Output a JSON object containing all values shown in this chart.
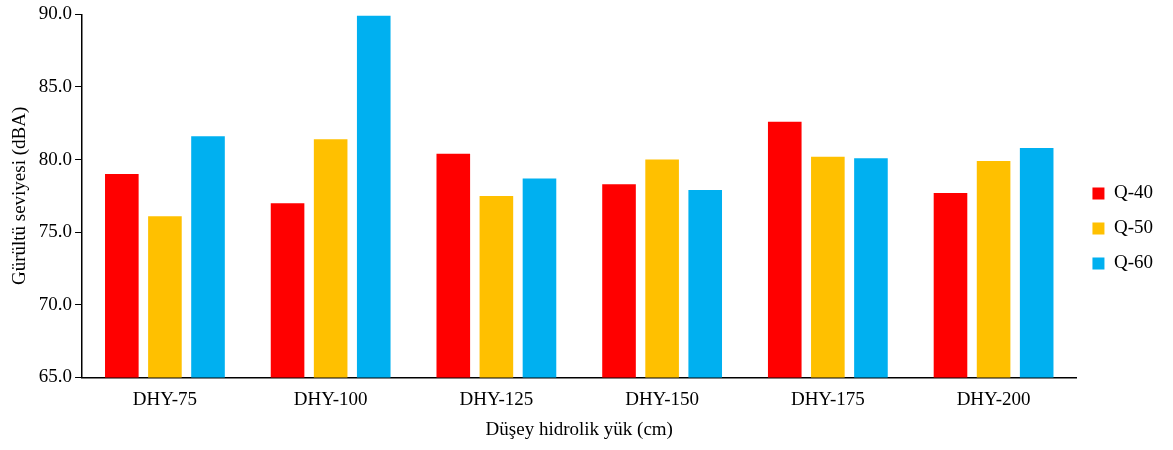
{
  "chart_data": {
    "type": "bar",
    "xlabel": "Düşey hidrolik yük (cm)",
    "ylabel": "Gürültü seviyesi (dBA)",
    "categories": [
      "DHY-75",
      "DHY-100",
      "DHY-125",
      "DHY-150",
      "DHY-175",
      "DHY-200"
    ],
    "series": [
      {
        "name": "Q-40",
        "color": "#ff0000",
        "values": [
          79.0,
          77.0,
          80.4,
          78.3,
          82.6,
          77.7
        ]
      },
      {
        "name": "Q-50",
        "color": "#ffc000",
        "values": [
          76.1,
          81.4,
          77.5,
          80.0,
          80.2,
          79.9
        ]
      },
      {
        "name": "Q-60",
        "color": "#00b0f0",
        "values": [
          81.6,
          89.9,
          78.7,
          77.9,
          80.1,
          80.8
        ]
      }
    ],
    "ylim": [
      65,
      90
    ],
    "yticks": [
      {
        "value": 65,
        "label": "65.0"
      },
      {
        "value": 70,
        "label": "70.0"
      },
      {
        "value": 75,
        "label": "75.0"
      },
      {
        "value": 80,
        "label": "80.0"
      },
      {
        "value": 85,
        "label": "85.0"
      },
      {
        "value": 90,
        "label": "90.0"
      }
    ],
    "grid": false,
    "legend": "right"
  }
}
